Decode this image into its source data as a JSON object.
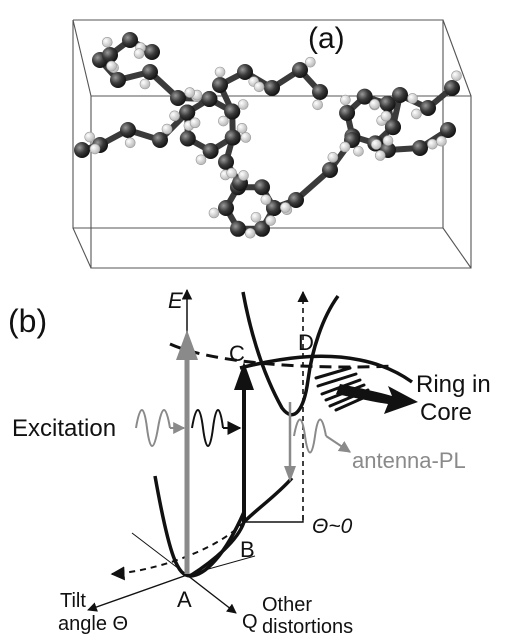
{
  "panel_a": {
    "label": "(a)"
  },
  "panel_b": {
    "label": "(b)",
    "energy_axis": "E",
    "point_a": "A",
    "point_b": "B",
    "point_c": "C",
    "point_d": "D",
    "excitation": "Excitation",
    "antenna_pl": "antenna-PL",
    "ring_in": "Ring in",
    "core": "Core",
    "theta_zero": "Θ~0",
    "tilt": "Tilt",
    "angle": "angle Θ",
    "q_axis": "Q",
    "other": "Other",
    "distortions": "distortions"
  },
  "colors": {
    "ink": "#111111",
    "grey_arrow": "#8a8a8a",
    "carbon": "#2e2e2e",
    "hydrogen": "#e6e6e6"
  }
}
